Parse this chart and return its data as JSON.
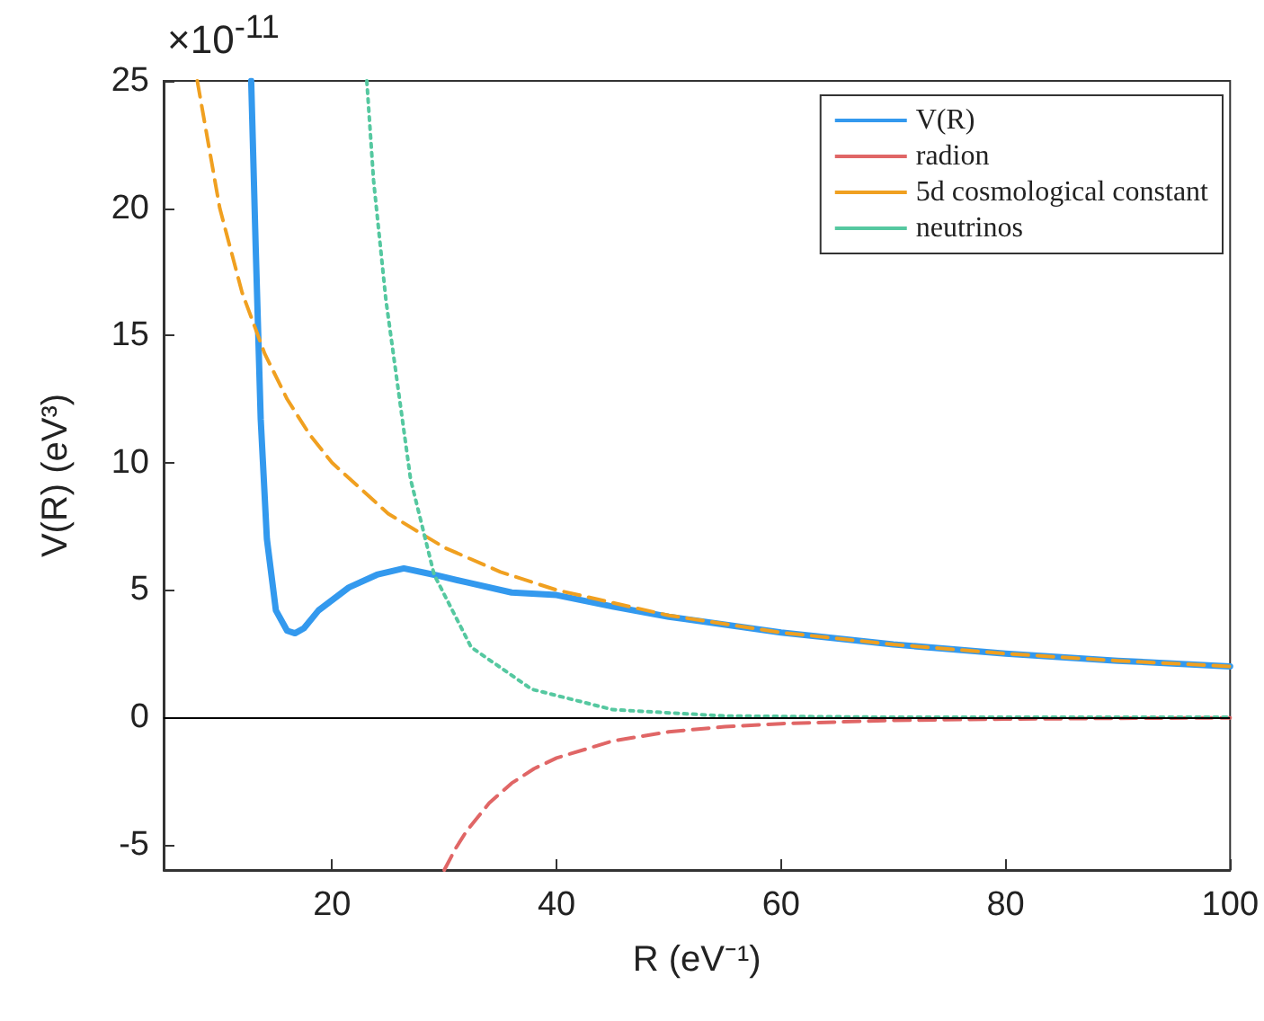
{
  "chart_data": {
    "type": "line",
    "xlabel": "R (eV⁻¹)",
    "ylabel": "V(R) (eV³)",
    "annotations": [
      "×10$^{-11}$"
    ],
    "xlim": [
      5,
      100
    ],
    "xticks": [
      20,
      40,
      60,
      80,
      100
    ],
    "ylim": [
      -6,
      25
    ],
    "yticks": [
      -5,
      0,
      5,
      10,
      15,
      20,
      25
    ],
    "grid": false,
    "legend": "top right",
    "marker": "none",
    "ref_lines": [
      {
        "axis": "y",
        "value": 0,
        "color": "#000000",
        "line_style": "solid"
      }
    ],
    "series": [
      {
        "name": "V(R)",
        "color": "#3399ee",
        "line_style": "solid",
        "x": [
          12.8,
          13.2,
          13.65,
          14.2,
          15,
          16,
          16.7,
          17.5,
          18.8,
          21.5,
          24,
          26.4,
          29.1,
          32,
          36,
          40,
          45,
          50,
          60,
          70,
          80,
          90,
          100
        ],
        "values": [
          25,
          18.5,
          11.7,
          7,
          4.2,
          3.4,
          3.3,
          3.5,
          4.2,
          5.1,
          5.6,
          5.85,
          5.6,
          5.3,
          4.9,
          4.8,
          4.35,
          3.95,
          3.33,
          2.86,
          2.5,
          2.22,
          2
        ]
      },
      {
        "name": "radion",
        "color": "#e06666",
        "line_style": "dashed",
        "x": [
          30,
          31,
          32,
          34,
          36,
          38,
          40,
          45,
          50,
          55,
          60,
          70,
          80,
          90,
          100
        ],
        "values": [
          -6,
          -5.16,
          -4.46,
          -3.37,
          -2.59,
          -2.02,
          -1.6,
          -0.93,
          -0.57,
          -0.37,
          -0.25,
          -0.12,
          -0.07,
          -0.04,
          -0.02
        ]
      },
      {
        "name": "5d cosmological constant",
        "color": "#f0a020",
        "line_style": "dashed",
        "x": [
          8,
          10,
          12,
          14,
          16,
          18,
          20,
          25,
          30,
          35,
          40,
          50,
          60,
          70,
          80,
          90,
          100
        ],
        "values": [
          25,
          20,
          16.67,
          14.29,
          12.5,
          11.11,
          10,
          8,
          6.67,
          5.71,
          5,
          4,
          3.33,
          2.86,
          2.5,
          2.22,
          2
        ]
      },
      {
        "name": "neutrinos",
        "color": "#55c8a0",
        "line_style": "dotted",
        "x": [
          23.1,
          23.7,
          24.8,
          27,
          29.1,
          32.4,
          37.8,
          45,
          55,
          70,
          100
        ],
        "values": [
          25,
          21.1,
          16.4,
          9.35,
          5.6,
          2.75,
          1.1,
          0.3,
          0.05,
          0,
          0
        ]
      }
    ]
  }
}
